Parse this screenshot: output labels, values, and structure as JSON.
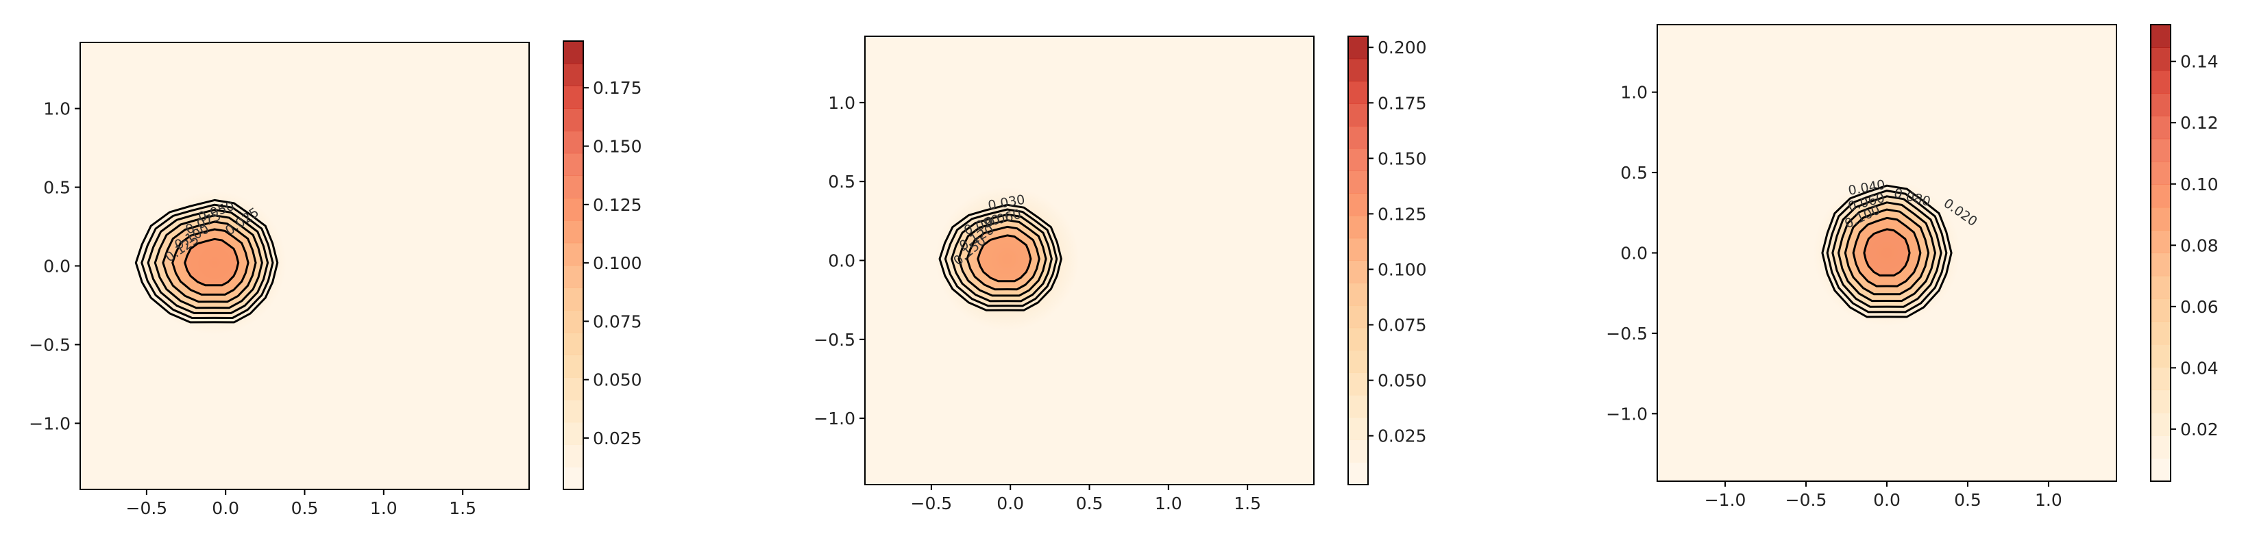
{
  "chart_data": [
    {
      "type": "heatmap",
      "overlay": "contour",
      "colormap": "OrRd",
      "contour_color": "#000000",
      "xlim": [
        -0.92,
        1.92
      ],
      "ylim": [
        -1.42,
        1.42
      ],
      "x_ticks": [
        -0.5,
        0.0,
        0.5,
        1.0,
        1.5
      ],
      "x_tick_labels": [
        "−0.5",
        "0.0",
        "0.5",
        "1.0",
        "1.5"
      ],
      "y_ticks": [
        -1.0,
        -0.5,
        0.0,
        0.5,
        1.0
      ],
      "y_tick_labels": [
        "−1.0",
        "−0.5",
        "0.0",
        "0.5",
        "1.0"
      ],
      "peak": {
        "x": -0.07,
        "y": 0.02
      },
      "peak_value": 0.195,
      "colorbar": {
        "range": [
          0.003,
          0.195
        ],
        "ticks": [
          0.025,
          0.05,
          0.075,
          0.1,
          0.125,
          0.15,
          0.175
        ],
        "tick_labels": [
          "0.025",
          "0.050",
          "0.075",
          "0.100",
          "0.125",
          "0.150",
          "0.175"
        ]
      },
      "contour_labels": [
        {
          "text": "0.025",
          "x": 0.12,
          "y": 0.26,
          "rotation": 35
        },
        {
          "text": "0.050",
          "x": -0.05,
          "y": 0.32,
          "rotation": 20
        },
        {
          "text": "0.075",
          "x": -0.13,
          "y": 0.25,
          "rotation": 25
        },
        {
          "text": "0.100",
          "x": -0.2,
          "y": 0.16,
          "rotation": 30
        },
        {
          "text": "0.125",
          "x": -0.26,
          "y": 0.09,
          "rotation": 35
        }
      ]
    },
    {
      "type": "heatmap",
      "overlay": "contour",
      "colormap": "OrRd",
      "contour_color": "#000000",
      "xlim": [
        -0.92,
        1.92
      ],
      "ylim": [
        -1.42,
        1.42
      ],
      "x_ticks": [
        -0.5,
        0.0,
        0.5,
        1.0,
        1.5
      ],
      "x_tick_labels": [
        "−0.5",
        "0.0",
        "0.5",
        "1.0",
        "1.5"
      ],
      "y_ticks": [
        -1.0,
        -0.5,
        0.0,
        0.5,
        1.0
      ],
      "y_tick_labels": [
        "−1.0",
        "−0.5",
        "0.0",
        "0.5",
        "1.0"
      ],
      "peak": {
        "x": -0.02,
        "y": 0.01
      },
      "peak_value": 0.205,
      "colorbar": {
        "range": [
          0.003,
          0.205
        ],
        "ticks": [
          0.025,
          0.05,
          0.075,
          0.1,
          0.125,
          0.15,
          0.175,
          0.2
        ],
        "tick_labels": [
          "0.025",
          "0.050",
          "0.075",
          "0.100",
          "0.125",
          "0.150",
          "0.175",
          "0.200"
        ]
      },
      "contour_labels": [
        {
          "text": "0.030",
          "x": -0.02,
          "y": 0.34,
          "rotation": 10
        },
        {
          "text": "0.060",
          "x": -0.04,
          "y": 0.24,
          "rotation": 15
        },
        {
          "text": "0.090",
          "x": -0.17,
          "y": 0.2,
          "rotation": 20
        },
        {
          "text": "0.120",
          "x": -0.2,
          "y": 0.12,
          "rotation": 30
        },
        {
          "text": "0.150",
          "x": -0.24,
          "y": 0.04,
          "rotation": 40
        }
      ]
    },
    {
      "type": "heatmap",
      "overlay": "contour",
      "colormap": "OrRd",
      "contour_color": "#000000",
      "xlim": [
        -1.42,
        1.42
      ],
      "ylim": [
        -1.42,
        1.42
      ],
      "x_ticks": [
        -1.0,
        -0.5,
        0.0,
        0.5,
        1.0
      ],
      "x_tick_labels": [
        "−1.0",
        "−0.5",
        "0.0",
        "0.5",
        "1.0"
      ],
      "y_ticks": [
        -1.0,
        -0.5,
        0.0,
        0.5,
        1.0
      ],
      "y_tick_labels": [
        "−1.0",
        "−0.5",
        "0.0",
        "0.5",
        "1.0"
      ],
      "peak": {
        "x": 0.0,
        "y": 0.0
      },
      "peak_value": 0.152,
      "colorbar": {
        "range": [
          0.003,
          0.152
        ],
        "ticks": [
          0.02,
          0.04,
          0.06,
          0.08,
          0.1,
          0.12,
          0.14
        ],
        "tick_labels": [
          "0.02",
          "0.04",
          "0.06",
          "0.08",
          "0.10",
          "0.12",
          "0.14"
        ]
      },
      "contour_labels": [
        {
          "text": "0.040",
          "x": -0.12,
          "y": 0.38,
          "rotation": 10
        },
        {
          "text": "0.060",
          "x": -0.12,
          "y": 0.29,
          "rotation": 15
        },
        {
          "text": "0.080",
          "x": 0.15,
          "y": 0.32,
          "rotation": -15
        },
        {
          "text": "0.100",
          "x": -0.14,
          "y": 0.2,
          "rotation": 25
        },
        {
          "text": "0.020",
          "x": 0.44,
          "y": 0.23,
          "rotation": -35
        }
      ]
    }
  ]
}
